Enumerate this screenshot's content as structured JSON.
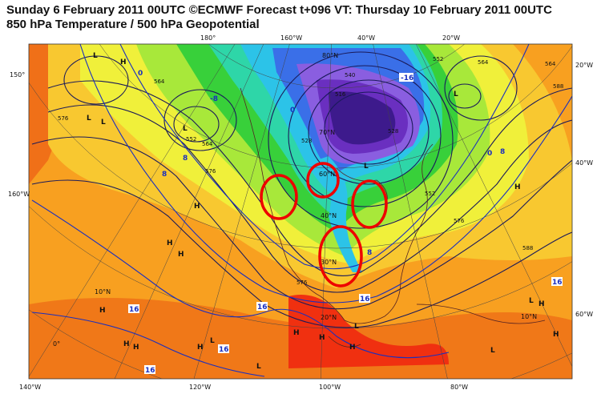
{
  "header": {
    "line1": "Sunday 6 February 2011 00UTC ©ECMWF Forecast t+096 VT: Thursday 10 February 2011 00UTC",
    "line2": "850 hPa Temperature / 500 hPa Geopotential"
  },
  "colors": {
    "deep_purple": "#3d1a8c",
    "purple": "#6a2fc0",
    "violet": "#8a5ee0",
    "blue": "#3a6fe8",
    "cyan": "#2cc3e8",
    "teal": "#2ed6a8",
    "green": "#38d03a",
    "lime": "#a8e83a",
    "yellow": "#f0f03a",
    "yellow_orange": "#f8c830",
    "orange": "#f8a020",
    "orange_red": "#f87018",
    "red": "#f03010",
    "contour_geopotential": "#1a1a5a",
    "contour_temperature": "#1a2fbf",
    "annotation_circle": "#ee0000"
  },
  "graticule_labels": {
    "top": [
      "180°",
      "160°W",
      "40°W",
      "20°W"
    ],
    "left": [
      "150°",
      "160°W"
    ],
    "right": [
      "20°W",
      "40°W",
      "60°W"
    ],
    "bottom": [
      "140°W",
      "120°W",
      "100°W",
      "80°W"
    ],
    "interior": [
      "80°N",
      "70°N",
      "60°N",
      "40°N",
      "20°N",
      "10°N",
      "30°N",
      "0°",
      "10°N"
    ]
  },
  "pressure_centers": [
    {
      "label": "L"
    },
    {
      "label": "H"
    },
    {
      "label": "L"
    },
    {
      "label": "L"
    },
    {
      "label": "L"
    },
    {
      "label": "H"
    },
    {
      "label": "H"
    },
    {
      "label": "H"
    },
    {
      "label": "L"
    },
    {
      "label": "L"
    },
    {
      "label": "H"
    },
    {
      "label": "H"
    },
    {
      "label": "H"
    },
    {
      "label": "H"
    },
    {
      "label": "L"
    },
    {
      "label": "H"
    },
    {
      "label": "L"
    },
    {
      "label": "H"
    },
    {
      "label": "H"
    },
    {
      "label": "L"
    },
    {
      "label": "H"
    },
    {
      "label": "L"
    },
    {
      "label": "H"
    },
    {
      "label": "L"
    },
    {
      "label": "H"
    }
  ],
  "temperature_labels": [
    "-16",
    "0",
    "8",
    "8",
    "0",
    "8",
    "16",
    "16",
    "16",
    "16",
    "16",
    "-8",
    "0",
    "8",
    "16"
  ],
  "geopotential_labels": [
    "564",
    "552",
    "576",
    "564",
    "528",
    "552",
    "540",
    "576",
    "564",
    "552",
    "576",
    "588",
    "528",
    "516",
    "564",
    "576",
    "588"
  ],
  "annotations": {
    "count": 4,
    "description_visible": false
  }
}
